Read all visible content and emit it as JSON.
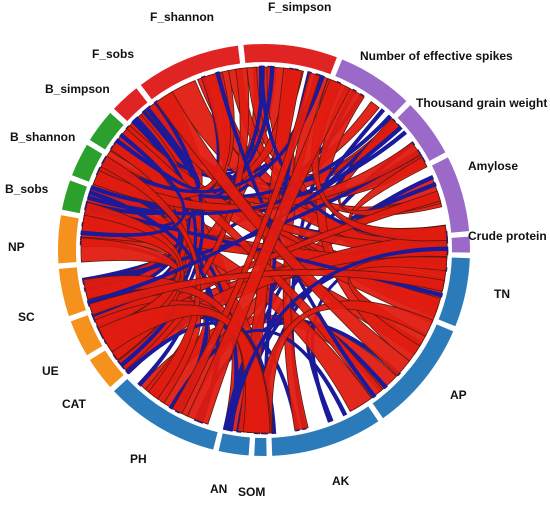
{
  "nodes": [
    {
      "label": "F_simpson",
      "color": "#e02424"
    },
    {
      "label": "Number of effective spikes",
      "color": "#9b6ac9"
    },
    {
      "label": "Thousand grain weight",
      "color": "#9b6ac9"
    },
    {
      "label": "Amylose",
      "color": "#9b6ac9"
    },
    {
      "label": "Crude protein",
      "color": "#9b6ac9"
    },
    {
      "label": "TN",
      "color": "#2b7bba"
    },
    {
      "label": "AP",
      "color": "#2b7bba"
    },
    {
      "label": "AK",
      "color": "#2b7bba"
    },
    {
      "label": "SOM",
      "color": "#2b7bba"
    },
    {
      "label": "AN",
      "color": "#2b7bba"
    },
    {
      "label": "PH",
      "color": "#2b7bba"
    },
    {
      "label": "CAT",
      "color": "#f5921e"
    },
    {
      "label": "UE",
      "color": "#f5921e"
    },
    {
      "label": "SC",
      "color": "#f5921e"
    },
    {
      "label": "NP",
      "color": "#f5921e"
    },
    {
      "label": "B_sobs",
      "color": "#2ca02c"
    },
    {
      "label": "B_shannon",
      "color": "#2ca02c"
    },
    {
      "label": "B_simpson",
      "color": "#2ca02c"
    },
    {
      "label": "F_sobs",
      "color": "#e02424"
    },
    {
      "label": "F_shannon",
      "color": "#e02424"
    }
  ]
}
